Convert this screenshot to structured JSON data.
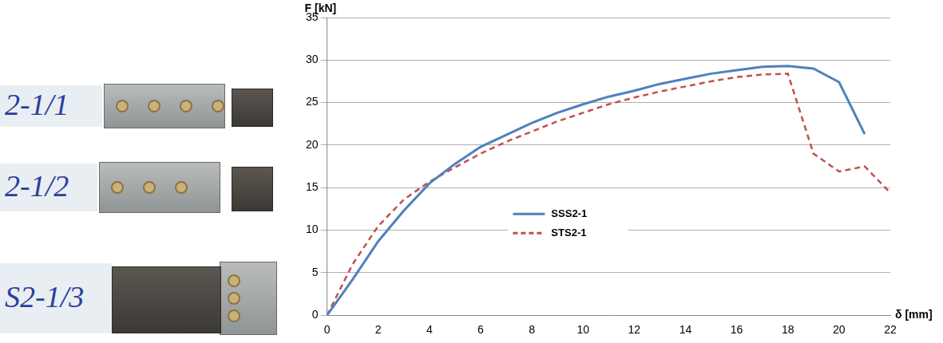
{
  "chart_data": {
    "type": "line",
    "x_label": "δ [mm]",
    "y_label": "F [kN]",
    "xlim": [
      0,
      22
    ],
    "xticks": [
      0,
      2,
      4,
      6,
      8,
      10,
      12,
      14,
      16,
      18,
      20,
      22
    ],
    "ylim": [
      0,
      35
    ],
    "yticks": [
      0,
      5,
      10,
      15,
      20,
      25,
      30,
      35
    ],
    "grid": true,
    "legend": "center",
    "series": [
      {
        "name": "SSS2-1",
        "color": "#4f81bd",
        "line_style": "solid",
        "marker": "none",
        "x": [
          0,
          1,
          2,
          3,
          4,
          5,
          6,
          7,
          8,
          9,
          10,
          11,
          12,
          13,
          14,
          15,
          16,
          17,
          18,
          19,
          20,
          21
        ],
        "values": [
          0,
          4.2,
          8.7,
          12.3,
          15.5,
          17.8,
          19.8,
          21.2,
          22.6,
          23.8,
          24.8,
          25.7,
          26.4,
          27.2,
          27.8,
          28.4,
          28.8,
          29.2,
          29.3,
          29.0,
          27.4,
          21.3
        ]
      },
      {
        "name": "STS2-1",
        "color": "#c0504d",
        "line_style": "dashed",
        "marker": "none",
        "x": [
          0,
          1,
          2,
          3,
          4,
          5,
          6,
          7,
          8,
          9,
          10,
          11,
          12,
          13,
          14,
          15,
          16,
          17,
          18,
          19,
          20,
          21,
          22
        ],
        "values": [
          0,
          6.0,
          10.5,
          13.6,
          15.7,
          17.4,
          19.0,
          20.4,
          21.6,
          22.8,
          23.8,
          24.8,
          25.6,
          26.3,
          26.9,
          27.5,
          28.0,
          28.3,
          28.4,
          19.0,
          16.9,
          17.5,
          14.4
        ]
      }
    ]
  },
  "photo": {
    "labels": [
      "2-1/1",
      "2-1/2",
      "S2-1/3"
    ]
  }
}
